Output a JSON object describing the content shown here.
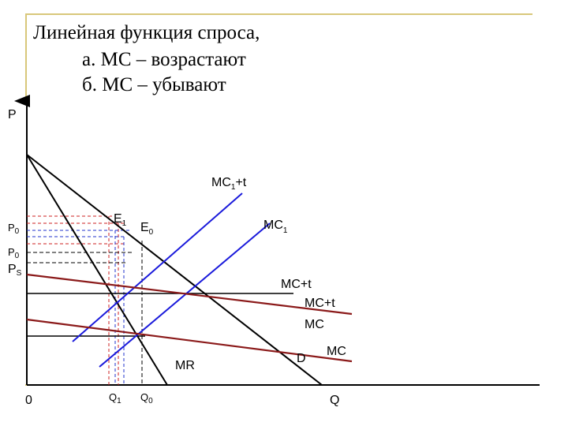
{
  "title": {
    "line1": "Линейная функция спроса,",
    "line2": "а. МС – возрастают",
    "line3": "б. МС – убывают"
  },
  "axes": {
    "y_label": "P",
    "x_label": "Q",
    "origin": "0"
  },
  "colors": {
    "frame": "#d8c77a",
    "demand": "#000000",
    "mc_rising": "#1a1adb",
    "mc_falling": "#8b1a1a",
    "guide_red": "#cc2222",
    "guide_blue": "#2233cc"
  },
  "labels": {
    "mc1t_main": "MC",
    "mc1t_sub": "1",
    "mc1t_tail": "+t",
    "mc1_main": "MC",
    "mc1_sub": "1",
    "e1_main": "E",
    "e1_sub": "1",
    "e0_main": "E",
    "e0_sub": "0",
    "p0a_main": "P",
    "p0a_sub": "0",
    "p0b_main": "P",
    "p0b_sub": "0",
    "ps_main": "P",
    "ps_sub": "S",
    "mct_a": "MC+t",
    "mct_b": "MC+t",
    "mc_a": "MC",
    "mc_b": "MC",
    "mr": "MR",
    "d": "D",
    "q1_main": "Q",
    "q1_sub": "1",
    "q0_main": "Q",
    "q0_sub": "0"
  }
}
